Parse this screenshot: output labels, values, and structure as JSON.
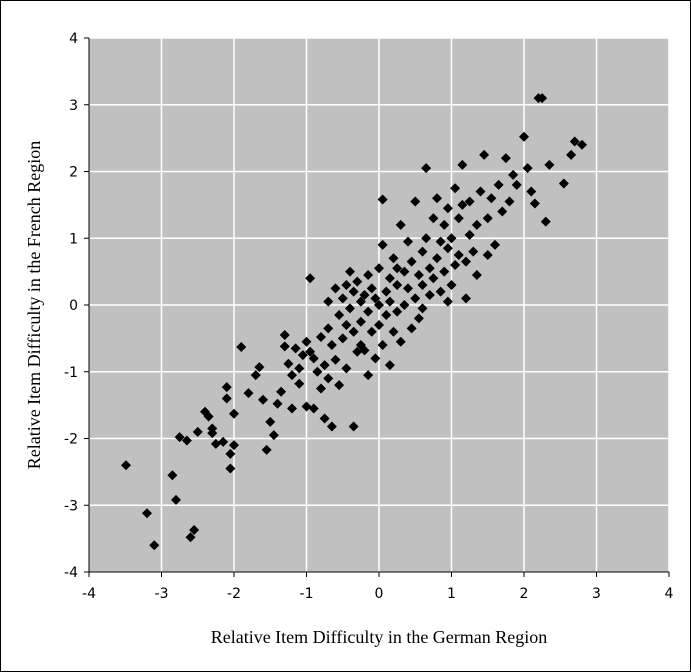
{
  "chart_data": {
    "type": "scatter",
    "title": "",
    "xlabel": "Relative Item Difficulty in the German Region",
    "ylabel": "Relative Item Difficulty in the French Region",
    "xlim": [
      -4,
      4
    ],
    "ylim": [
      -4,
      4
    ],
    "xticks": [
      -4,
      -3,
      -2,
      -1,
      0,
      1,
      2,
      3,
      4
    ],
    "yticks": [
      -4,
      -3,
      -2,
      -1,
      0,
      1,
      2,
      3,
      4
    ],
    "grid": true,
    "legend": "none",
    "colors": {
      "plot_background": "#c0c0c0",
      "grid": "#ffffff",
      "marker": "#000000"
    },
    "marker": "diamond",
    "series": [
      {
        "points": [
          [
            -3.49,
            -2.4
          ],
          [
            -3.2,
            -3.12
          ],
          [
            -3.1,
            -3.6
          ],
          [
            -2.85,
            -2.55
          ],
          [
            -2.8,
            -2.92
          ],
          [
            -2.75,
            -1.98
          ],
          [
            -2.65,
            -2.03
          ],
          [
            -2.6,
            -3.48
          ],
          [
            -2.55,
            -3.37
          ],
          [
            -2.5,
            -1.9
          ],
          [
            -2.4,
            -1.6
          ],
          [
            -2.35,
            -1.67
          ],
          [
            -2.3,
            -1.85
          ],
          [
            -2.3,
            -1.92
          ],
          [
            -2.25,
            -2.08
          ],
          [
            -2.15,
            -2.05
          ],
          [
            -2.1,
            -1.4
          ],
          [
            -2.1,
            -1.23
          ],
          [
            -2.05,
            -2.23
          ],
          [
            -2.05,
            -2.45
          ],
          [
            -2.0,
            -1.63
          ],
          [
            -2.0,
            -2.1
          ],
          [
            -1.9,
            -0.63
          ],
          [
            -1.8,
            -1.32
          ],
          [
            -1.7,
            -1.05
          ],
          [
            -1.65,
            -0.93
          ],
          [
            -1.6,
            -1.42
          ],
          [
            -1.55,
            -2.17
          ],
          [
            -1.5,
            -1.75
          ],
          [
            -1.45,
            -1.95
          ],
          [
            -1.4,
            -1.48
          ],
          [
            -1.35,
            -1.3
          ],
          [
            -1.3,
            -0.45
          ],
          [
            -1.3,
            -0.62
          ],
          [
            -1.25,
            -0.88
          ],
          [
            -1.2,
            -1.05
          ],
          [
            -1.2,
            -1.55
          ],
          [
            -1.15,
            -0.65
          ],
          [
            -1.1,
            -0.95
          ],
          [
            -1.1,
            -1.18
          ],
          [
            -1.05,
            -0.75
          ],
          [
            -1.0,
            -1.52
          ],
          [
            -1.0,
            -0.55
          ],
          [
            -0.95,
            -0.7
          ],
          [
            -0.95,
            0.4
          ],
          [
            -0.9,
            -0.8
          ],
          [
            -0.9,
            -1.55
          ],
          [
            -0.85,
            -1.0
          ],
          [
            -0.8,
            -0.48
          ],
          [
            -0.8,
            -1.25
          ],
          [
            -0.75,
            -0.9
          ],
          [
            -0.75,
            -1.7
          ],
          [
            -0.7,
            -1.1
          ],
          [
            -0.7,
            -0.35
          ],
          [
            -0.65,
            -0.6
          ],
          [
            -0.65,
            -1.82
          ],
          [
            -0.6,
            -0.82
          ],
          [
            -0.6,
            0.25
          ],
          [
            -0.55,
            -0.15
          ],
          [
            -0.55,
            -1.2
          ],
          [
            -0.5,
            -0.5
          ],
          [
            -0.5,
            0.1
          ],
          [
            -0.45,
            -0.3
          ],
          [
            -0.45,
            -0.95
          ],
          [
            -0.4,
            -0.05
          ],
          [
            -0.4,
            0.5
          ],
          [
            -0.35,
            0.2
          ],
          [
            -0.35,
            -0.4
          ],
          [
            -0.35,
            -1.82
          ],
          [
            -0.3,
            -0.7
          ],
          [
            -0.3,
            0.35
          ],
          [
            -0.25,
            -0.25
          ],
          [
            -0.25,
            0.05
          ],
          [
            -0.2,
            0.15
          ],
          [
            -0.2,
            -0.68
          ],
          [
            -0.15,
            -0.1
          ],
          [
            -0.15,
            0.45
          ],
          [
            -0.15,
            -1.05
          ],
          [
            -0.1,
            -0.4
          ],
          [
            -0.1,
            0.25
          ],
          [
            -0.05,
            -0.8
          ],
          [
            -0.05,
            0.1
          ],
          [
            0.0,
            0.0
          ],
          [
            0.0,
            0.55
          ],
          [
            0.0,
            -0.3
          ],
          [
            0.05,
            0.9
          ],
          [
            0.05,
            1.58
          ],
          [
            0.05,
            -0.6
          ],
          [
            0.1,
            0.2
          ],
          [
            0.1,
            -0.15
          ],
          [
            0.15,
            0.05
          ],
          [
            0.15,
            0.4
          ],
          [
            0.2,
            -0.4
          ],
          [
            0.2,
            0.7
          ],
          [
            0.25,
            -0.1
          ],
          [
            0.25,
            0.3
          ],
          [
            0.3,
            1.2
          ],
          [
            0.3,
            -0.55
          ],
          [
            0.35,
            0.5
          ],
          [
            0.35,
            0.0
          ],
          [
            0.4,
            0.25
          ],
          [
            0.4,
            0.95
          ],
          [
            0.45,
            -0.35
          ],
          [
            0.45,
            0.65
          ],
          [
            0.5,
            0.1
          ],
          [
            0.5,
            1.55
          ],
          [
            0.55,
            0.45
          ],
          [
            0.55,
            -0.2
          ],
          [
            0.6,
            0.8
          ],
          [
            0.6,
            0.3
          ],
          [
            0.65,
            2.05
          ],
          [
            0.65,
            1.0
          ],
          [
            0.7,
            0.55
          ],
          [
            0.7,
            0.15
          ],
          [
            0.75,
            1.3
          ],
          [
            0.75,
            0.4
          ],
          [
            0.8,
            0.7
          ],
          [
            0.8,
            1.6
          ],
          [
            0.85,
            0.95
          ],
          [
            0.85,
            0.2
          ],
          [
            0.9,
            1.2
          ],
          [
            0.9,
            0.5
          ],
          [
            0.95,
            1.45
          ],
          [
            0.95,
            0.85
          ],
          [
            1.0,
            0.3
          ],
          [
            1.0,
            1.0
          ],
          [
            1.05,
            0.6
          ],
          [
            1.05,
            1.75
          ],
          [
            1.1,
            0.75
          ],
          [
            1.1,
            1.3
          ],
          [
            1.15,
            2.1
          ],
          [
            1.2,
            0.65
          ],
          [
            1.2,
            0.1
          ],
          [
            1.25,
            1.05
          ],
          [
            1.25,
            1.55
          ],
          [
            1.3,
            0.8
          ],
          [
            1.35,
            1.2
          ],
          [
            1.35,
            0.45
          ],
          [
            1.4,
            1.7
          ],
          [
            1.45,
            2.25
          ],
          [
            1.5,
            0.75
          ],
          [
            1.5,
            1.3
          ],
          [
            1.55,
            1.6
          ],
          [
            1.6,
            0.9
          ],
          [
            1.65,
            1.8
          ],
          [
            1.7,
            1.4
          ],
          [
            1.75,
            2.2
          ],
          [
            1.8,
            1.55
          ],
          [
            1.85,
            1.95
          ],
          [
            1.9,
            1.8
          ],
          [
            2.0,
            2.52
          ],
          [
            2.05,
            2.05
          ],
          [
            2.1,
            1.7
          ],
          [
            2.15,
            1.52
          ],
          [
            2.2,
            3.1
          ],
          [
            2.25,
            3.1
          ],
          [
            2.3,
            1.25
          ],
          [
            2.35,
            2.1
          ],
          [
            2.55,
            1.82
          ],
          [
            2.65,
            2.25
          ],
          [
            2.7,
            2.45
          ],
          [
            2.8,
            2.4
          ],
          [
            -0.25,
            -0.6
          ],
          [
            0.15,
            -0.9
          ],
          [
            0.6,
            -0.05
          ],
          [
            -0.7,
            0.05
          ],
          [
            0.25,
            0.55
          ],
          [
            -0.45,
            0.3
          ],
          [
            0.95,
            0.05
          ],
          [
            1.15,
            1.5
          ]
        ]
      }
    ]
  }
}
